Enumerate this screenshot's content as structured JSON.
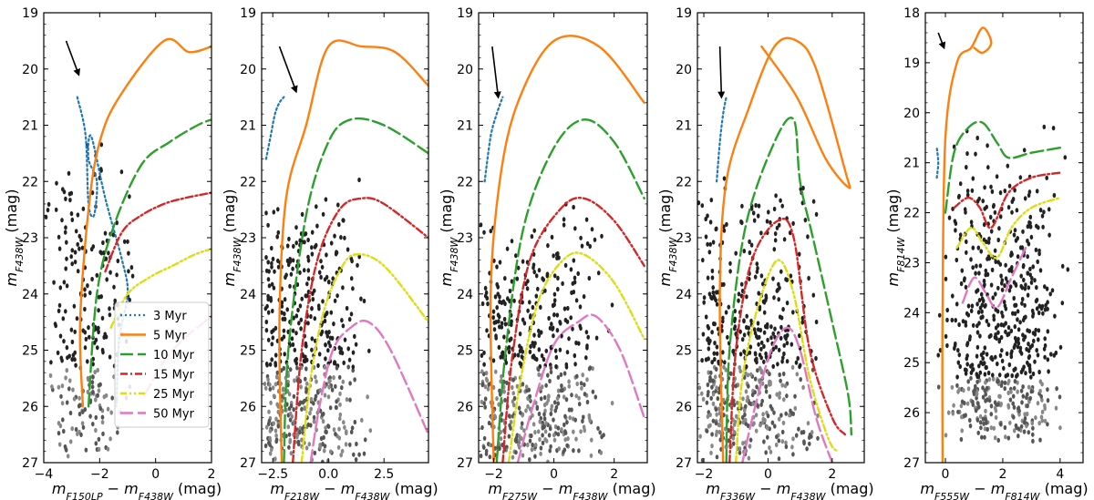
{
  "series_styles": {
    "3 Myr": {
      "color": "#1f77b4",
      "dash": "2,3",
      "width": 2.2
    },
    "5 Myr": {
      "color": "#ff7f0e",
      "dash": "",
      "width": 2.4
    },
    "10 Myr": {
      "color": "#2ca02c",
      "dash": "14,5",
      "width": 2.4
    },
    "15 Myr": {
      "color": "#d62728",
      "dash": "8,3,2,3",
      "width": 2.4
    },
    "25 Myr": {
      "color": "#dddd11",
      "dash": "7,3,2,3,2,3",
      "width": 2.4
    },
    "50 Myr": {
      "color": "#e377c2",
      "dash": "14,5",
      "width": 2.4
    }
  },
  "star_color": "#222222",
  "arrow_color": "#000000",
  "chart_data": [
    {
      "type": "scatter",
      "xlabel": "m_F150LP − m_F438W (mag)",
      "ylabel": "m_F438W (mag)",
      "xlim": [
        -4,
        2
      ],
      "ylim": [
        27,
        19
      ],
      "y_inverted": true,
      "xticks": [
        -4,
        -2,
        0,
        2
      ],
      "xtick_labels": [
        "−4",
        "−2",
        "0",
        "2"
      ],
      "yticks": [
        19,
        20,
        21,
        22,
        23,
        24,
        25,
        26,
        27
      ],
      "legend": {
        "position": "lower-right",
        "entries": [
          "3 Myr",
          "5 Myr",
          "10 Myr",
          "15 Myr",
          "25 Myr",
          "50 Myr"
        ]
      },
      "reddening_arrow": {
        "from": [
          -3.2,
          19.5
        ],
        "to": [
          -2.75,
          20.1
        ]
      },
      "stars": {
        "x_range": [
          -4.0,
          -0.7
        ],
        "y_range": [
          21.0,
          27.0
        ],
        "count": 260,
        "seed": 11,
        "density_center": [
          -2.7,
          25.0
        ]
      },
      "series": [
        {
          "name": "3 Myr",
          "x": [
            -2.8,
            -2.5,
            -2.4,
            -2.2,
            -2.1,
            -2.4,
            -2.3,
            -1.8,
            -1.2,
            -1.0,
            -1.3,
            -1.4
          ],
          "y": [
            20.5,
            21.2,
            22.4,
            22.6,
            22.0,
            21.6,
            21.2,
            22.3,
            23.4,
            24.0,
            24.8,
            26.0
          ]
        },
        {
          "name": "5 Myr",
          "x": [
            -2.6,
            -2.7,
            -2.4,
            -2.0,
            -1.3,
            0.3,
            1.2,
            2.0
          ],
          "y": [
            26.0,
            24.5,
            22.5,
            21.3,
            20.5,
            19.5,
            19.7,
            19.6
          ]
        },
        {
          "name": "10 Myr",
          "x": [
            -2.4,
            -2.1,
            -1.5,
            -0.5,
            0.5,
            1.5,
            2.0
          ],
          "y": [
            26.0,
            24.0,
            22.8,
            21.7,
            21.3,
            21.0,
            20.9
          ]
        },
        {
          "name": "15 Myr",
          "x": [
            -1.8,
            -1.2,
            -0.5,
            0.3,
            1.0,
            2.0
          ],
          "y": [
            23.6,
            22.9,
            22.6,
            22.4,
            22.3,
            22.2
          ]
        },
        {
          "name": "25 Myr",
          "x": [
            -1.6,
            -1.0,
            -0.2,
            0.6,
            1.4,
            2.0
          ],
          "y": [
            24.6,
            24.0,
            23.7,
            23.5,
            23.3,
            23.2
          ]
        },
        {
          "name": "50 Myr",
          "x": [
            -0.4,
            0.3,
            1.0,
            2.0
          ],
          "y": [
            25.8,
            25.2,
            24.8,
            24.4
          ]
        }
      ]
    },
    {
      "type": "scatter",
      "xlabel": "m_F218W − m_F438W (mag)",
      "ylabel": "m_F438W (mag)",
      "xlim": [
        -3,
        4.5
      ],
      "ylim": [
        27,
        19
      ],
      "y_inverted": true,
      "xticks": [
        -2.5,
        0.0,
        2.5
      ],
      "xtick_labels": [
        "−2.5",
        "0.0",
        "2.5"
      ],
      "yticks": [
        19,
        20,
        21,
        22,
        23,
        24,
        25,
        26,
        27
      ],
      "reddening_arrow": {
        "from": [
          -2.2,
          19.6
        ],
        "to": [
          -1.45,
          20.4
        ]
      },
      "stars": {
        "x_range": [
          -3.0,
          2.0
        ],
        "y_range": [
          21.8,
          27.0
        ],
        "count": 520,
        "seed": 23,
        "density_center": [
          -2.4,
          25.8
        ]
      },
      "series": [
        {
          "name": "3 Myr",
          "x": [
            -2.8,
            -2.6,
            -2.4,
            -2.2,
            -2.0
          ],
          "y": [
            21.6,
            21.2,
            20.8,
            20.6,
            20.5
          ]
        },
        {
          "name": "5 Myr",
          "x": [
            -2.1,
            -2.2,
            -1.9,
            -1.0,
            0.0,
            1.5,
            3.0,
            4.5
          ],
          "y": [
            27.0,
            24.5,
            22.3,
            21.0,
            19.6,
            19.6,
            19.7,
            20.3
          ]
        },
        {
          "name": "10 Myr",
          "x": [
            -2.0,
            -1.8,
            -1.0,
            0.0,
            1.0,
            2.5,
            4.5
          ],
          "y": [
            27.0,
            25.0,
            22.6,
            21.3,
            20.9,
            21.0,
            21.5
          ]
        },
        {
          "name": "15 Myr",
          "x": [
            -1.6,
            -1.2,
            -0.5,
            0.5,
            1.5,
            2.5,
            4.5
          ],
          "y": [
            27.0,
            25.0,
            23.4,
            22.5,
            22.3,
            22.4,
            23.0
          ]
        },
        {
          "name": "25 Myr",
          "x": [
            -1.2,
            -0.8,
            -0.2,
            0.5,
            1.2,
            2.5,
            4.5
          ],
          "y": [
            27.0,
            25.5,
            24.3,
            23.6,
            23.3,
            23.5,
            24.5
          ]
        },
        {
          "name": "50 Myr",
          "x": [
            -0.8,
            -0.4,
            0.2,
            1.0,
            1.8,
            2.8,
            4.5
          ],
          "y": [
            27.0,
            26.0,
            25.0,
            24.6,
            24.5,
            25.0,
            26.5
          ]
        }
      ]
    },
    {
      "type": "scatter",
      "xlabel": "m_F275W − m_F438W (mag)",
      "ylabel": "m_F438W (mag)",
      "xlim": [
        -2.5,
        3.1
      ],
      "ylim": [
        27,
        19
      ],
      "y_inverted": true,
      "xticks": [
        -2,
        0,
        2
      ],
      "xtick_labels": [
        "−2",
        "0",
        "2"
      ],
      "yticks": [
        19,
        20,
        21,
        22,
        23,
        24,
        25,
        26,
        27
      ],
      "reddening_arrow": {
        "from": [
          -2.05,
          19.6
        ],
        "to": [
          -1.85,
          20.5
        ]
      },
      "stars": {
        "x_range": [
          -2.5,
          2.0
        ],
        "y_range": [
          22.0,
          27.0
        ],
        "count": 540,
        "seed": 37,
        "density_center": [
          -2.0,
          25.8
        ]
      },
      "series": [
        {
          "name": "3 Myr",
          "x": [
            -2.3,
            -2.1,
            -1.9,
            -1.7
          ],
          "y": [
            22.0,
            21.2,
            20.8,
            20.5
          ]
        },
        {
          "name": "5 Myr",
          "x": [
            -2.0,
            -2.1,
            -1.8,
            -1.2,
            0.0,
            1.5,
            3.0
          ],
          "y": [
            27.0,
            24.0,
            22.0,
            20.6,
            19.5,
            19.6,
            20.6
          ]
        },
        {
          "name": "10 Myr",
          "x": [
            -1.9,
            -1.6,
            -1.0,
            0.0,
            1.0,
            2.0,
            3.0
          ],
          "y": [
            27.0,
            25.0,
            22.8,
            21.4,
            20.9,
            21.3,
            22.3
          ]
        },
        {
          "name": "15 Myr",
          "x": [
            -1.7,
            -1.4,
            -0.8,
            0.2,
            1.0,
            2.0,
            3.0
          ],
          "y": [
            27.0,
            25.2,
            23.4,
            22.5,
            22.3,
            22.7,
            23.5
          ]
        },
        {
          "name": "25 Myr",
          "x": [
            -1.5,
            -1.1,
            -0.5,
            0.3,
            1.0,
            2.0,
            3.0
          ],
          "y": [
            27.0,
            25.5,
            24.1,
            23.4,
            23.3,
            23.8,
            24.8
          ]
        },
        {
          "name": "50 Myr",
          "x": [
            -1.2,
            -0.7,
            0.0,
            0.8,
            1.4,
            2.2,
            3.0
          ],
          "y": [
            27.0,
            26.0,
            24.9,
            24.5,
            24.4,
            25.0,
            26.2
          ]
        }
      ]
    },
    {
      "type": "scatter",
      "xlabel": "m_F336W − m_F438W (mag)",
      "ylabel": "m_F438W (mag)",
      "xlim": [
        -2.2,
        3.0
      ],
      "ylim": [
        27,
        19
      ],
      "y_inverted": true,
      "xticks": [
        -2,
        0,
        2
      ],
      "xtick_labels": [
        "−2",
        "0",
        "2"
      ],
      "yticks": [
        19,
        20,
        21,
        22,
        23,
        24,
        25,
        26,
        27
      ],
      "reddening_arrow": {
        "from": [
          -1.5,
          19.6
        ],
        "to": [
          -1.45,
          20.5
        ]
      },
      "stars": {
        "x_range": [
          -2.2,
          1.8
        ],
        "y_range": [
          21.5,
          27.0
        ],
        "count": 560,
        "seed": 53,
        "density_center": [
          -1.5,
          25.8
        ]
      },
      "series": [
        {
          "name": "3 Myr",
          "x": [
            -1.6,
            -1.5,
            -1.4,
            -1.3
          ],
          "y": [
            22.0,
            21.3,
            20.8,
            20.5
          ]
        },
        {
          "name": "5 Myr",
          "x": [
            -1.4,
            -1.5,
            -1.3,
            -0.6,
            0.2,
            0.9,
            1.5,
            2.4,
            2.5,
            1.8,
            0.9,
            -0.2
          ],
          "y": [
            27.0,
            24.0,
            22.0,
            20.7,
            19.6,
            19.5,
            20.0,
            21.8,
            22.1,
            21.6,
            20.5,
            19.6
          ]
        },
        {
          "name": "10 Myr",
          "x": [
            -1.3,
            -1.2,
            -0.7,
            0.2,
            0.8,
            1.0,
            1.4,
            2.0,
            2.5,
            2.6
          ],
          "y": [
            27.0,
            25.0,
            22.8,
            21.3,
            20.9,
            22.0,
            23.0,
            24.5,
            25.8,
            26.5
          ]
        },
        {
          "name": "15 Myr",
          "x": [
            -1.2,
            -1.0,
            -0.5,
            0.3,
            0.8,
            1.3,
            2.0,
            2.4
          ],
          "y": [
            27.0,
            25.0,
            23.4,
            22.7,
            23.0,
            25.0,
            26.2,
            26.5
          ]
        },
        {
          "name": "25 Myr",
          "x": [
            -1.0,
            -0.8,
            -0.3,
            0.3,
            0.8,
            1.3,
            1.9,
            2.2
          ],
          "y": [
            27.0,
            25.5,
            24.2,
            23.4,
            24.0,
            25.5,
            26.6,
            26.8
          ]
        },
        {
          "name": "50 Myr",
          "x": [
            -0.8,
            -0.4,
            0.1,
            0.6,
            1.0,
            1.5,
            2.0
          ],
          "y": [
            27.0,
            26.0,
            25.0,
            24.6,
            25.0,
            26.2,
            27.0
          ]
        }
      ]
    },
    {
      "type": "scatter",
      "xlabel": "m_F555W − m_F814W (mag)",
      "ylabel": "m_F814W (mag)",
      "xlim": [
        -0.7,
        4.8
      ],
      "ylim": [
        27,
        18
      ],
      "y_inverted": true,
      "xticks": [
        0,
        2,
        4
      ],
      "xtick_labels": [
        "0",
        "2",
        "4"
      ],
      "yticks": [
        18,
        19,
        20,
        21,
        22,
        23,
        24,
        25,
        26,
        27
      ],
      "reddening_arrow": {
        "from": [
          -0.25,
          18.4
        ],
        "to": [
          -0.05,
          18.7
        ]
      },
      "stars": {
        "x_range": [
          -0.3,
          4.3
        ],
        "y_range": [
          20.0,
          26.7
        ],
        "count": 620,
        "seed": 71,
        "density_center": [
          1.8,
          25.0
        ]
      },
      "series": [
        {
          "name": "3 Myr",
          "x": [
            -0.3,
            -0.25,
            -0.3
          ],
          "y": [
            21.3,
            21.0,
            20.7
          ]
        },
        {
          "name": "5 Myr",
          "x": [
            -0.1,
            -0.1,
            0.0,
            0.4,
            0.9,
            1.3,
            1.6,
            1.3,
            1.0
          ],
          "y": [
            27.0,
            24.0,
            20.5,
            19.0,
            18.7,
            18.3,
            18.6,
            18.8,
            18.7
          ]
        },
        {
          "name": "10 Myr",
          "x": [
            0.0,
            0.3,
            0.8,
            1.3,
            1.8,
            2.2,
            3.0,
            4.0
          ],
          "y": [
            22.0,
            20.8,
            20.3,
            20.2,
            20.6,
            20.9,
            20.8,
            20.7
          ]
        },
        {
          "name": "15 Myr",
          "x": [
            0.3,
            0.8,
            1.2,
            1.6,
            2.2,
            3.0,
            4.0
          ],
          "y": [
            21.9,
            21.7,
            21.9,
            22.3,
            21.6,
            21.3,
            21.2
          ]
        },
        {
          "name": "25 Myr",
          "x": [
            0.4,
            0.9,
            1.3,
            1.8,
            2.3,
            3.0,
            4.0
          ],
          "y": [
            22.7,
            22.3,
            22.6,
            22.9,
            22.3,
            21.9,
            21.7
          ]
        },
        {
          "name": "50 Myr",
          "x": [
            0.6,
            1.0,
            1.4,
            1.8,
            2.3,
            2.8
          ],
          "y": [
            23.8,
            23.3,
            23.6,
            23.9,
            23.3,
            22.7
          ]
        }
      ]
    }
  ]
}
